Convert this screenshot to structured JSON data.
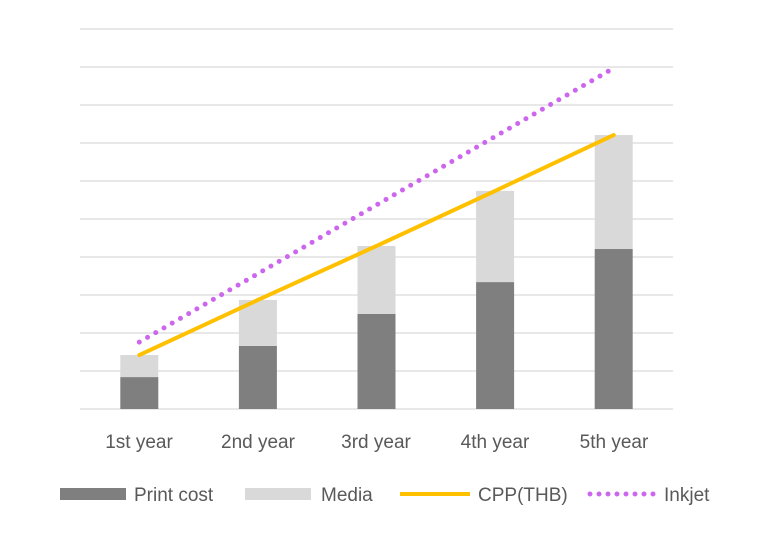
{
  "chart_data": {
    "type": "bar",
    "title": "",
    "xlabel": "",
    "ylabel": "",
    "ylim": [
      0,
      10
    ],
    "grid": true,
    "categories": [
      "1st year",
      "2nd year",
      "3rd year",
      "4th year",
      "5th year"
    ],
    "series": [
      {
        "name": "Print cost",
        "kind": "stacked-bar",
        "color": "#7f7f7f",
        "values": [
          0.84,
          1.66,
          2.5,
          3.34,
          4.21
        ]
      },
      {
        "name": "Media",
        "kind": "stacked-bar",
        "color": "#d9d9d9",
        "values": [
          0.58,
          1.21,
          1.79,
          2.4,
          3.0
        ]
      },
      {
        "name": "CPP(THB)",
        "kind": "line",
        "color": "#ffc000",
        "values": [
          1.42,
          2.87,
          4.29,
          5.74,
          7.21
        ]
      },
      {
        "name": "Inkjet",
        "kind": "dotted-line",
        "color": "#cc66ee",
        "values": [
          1.76,
          3.56,
          5.37,
          7.17,
          8.97
        ]
      }
    ],
    "legend_position": "bottom"
  }
}
